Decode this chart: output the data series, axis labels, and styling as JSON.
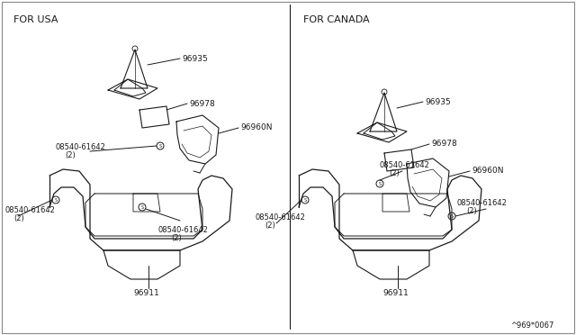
{
  "background_color": "#ffffff",
  "line_color": "#1a1a1a",
  "text_color": "#1a1a1a",
  "section_left_label": "FOR USA",
  "section_right_label": "FOR CANADA",
  "diagram_code": "^969*0067",
  "parts": {
    "96935": "96935",
    "96978": "96978",
    "96960N": "96960N",
    "96911": "96911",
    "bolt": "08540-61642",
    "qty": "(2)"
  },
  "font_size_section": 8,
  "font_size_part": 6.5,
  "font_size_code": 6
}
